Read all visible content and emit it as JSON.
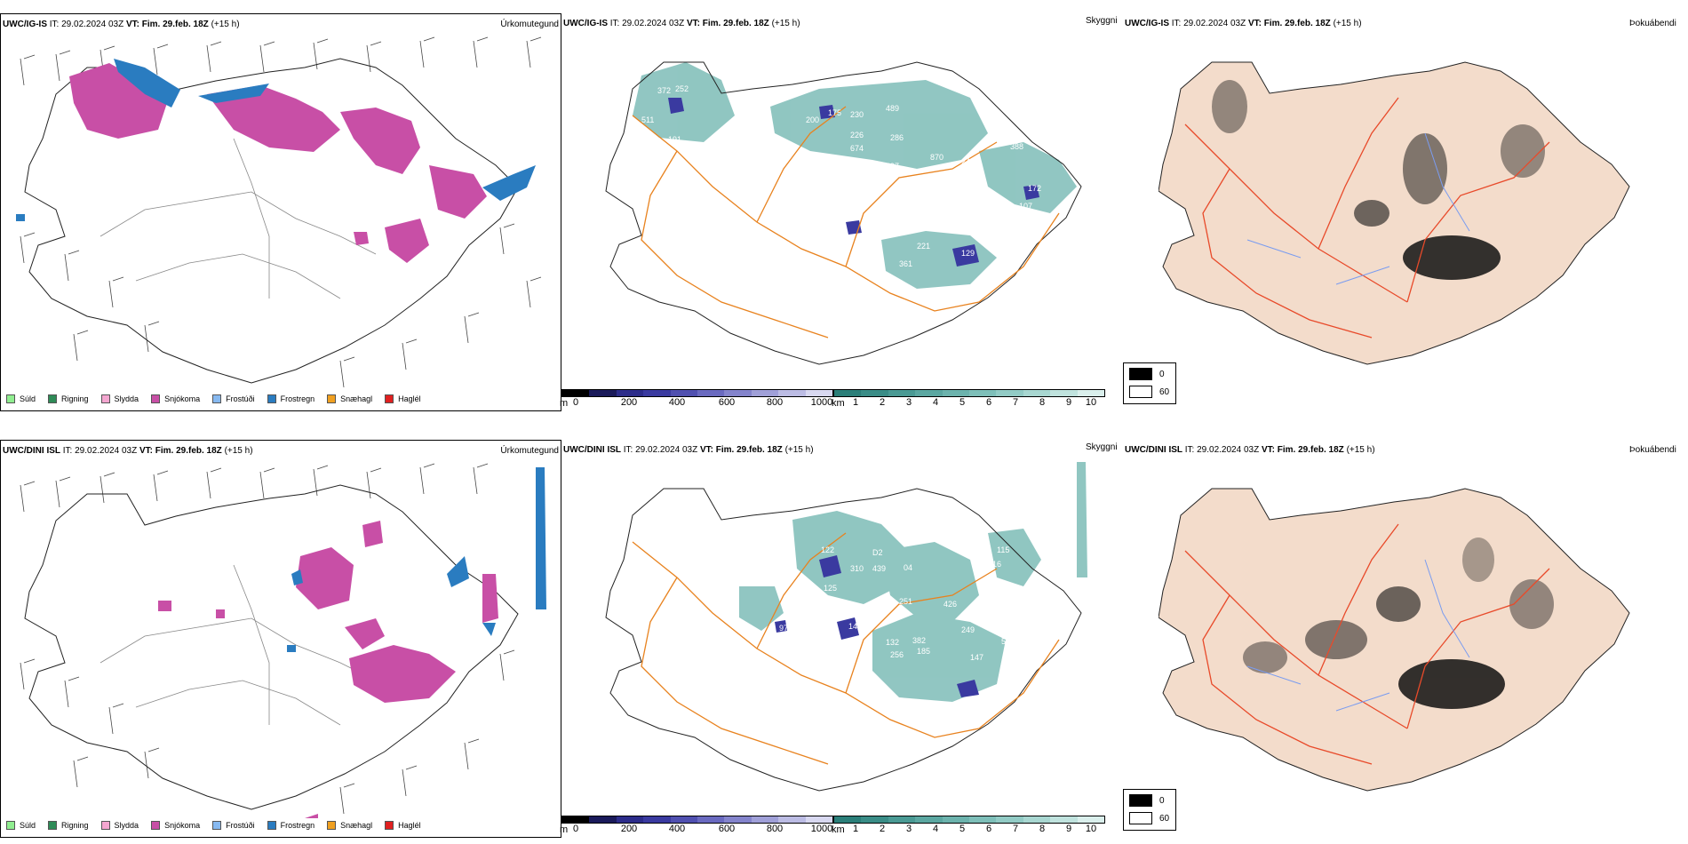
{
  "colors": {
    "sudd": "#90ee90",
    "rigning": "#2e8b57",
    "slydda": "#f4a6d0",
    "snjokoma": "#c84fa6",
    "frostudi": "#87b9f0",
    "frostregn": "#2a7cc0",
    "snaehagl": "#f0a020",
    "haglel": "#e02020",
    "snow_magenta": "#c84fa6",
    "snow_blue": "#2a7cc0",
    "roads": "#e8821e",
    "cloud_teal": "#4aa39c",
    "fog_land": "#f3dccb",
    "fog_road": "#e84a2a",
    "fog_river": "#7a9cf0"
  },
  "icons": [
    "wind-barb-icon",
    "fog-shade-icon"
  ],
  "rows": [
    {
      "model": "UWC/IG-IS",
      "it_label": "IT:",
      "it_value": "29.02.2024 03Z",
      "vt_label": "VT:",
      "vt_value": "Fim. 29.feb. 18Z",
      "lead": "(+15 h)",
      "precip_title": "Úrkomutegund",
      "cloud_title": "Skyggni",
      "fog_title": "Þokuábendi",
      "cloud_labels": [
        "372",
        "252",
        "511",
        "191",
        "629",
        "200",
        "175",
        "230",
        "489",
        "226",
        "286",
        "674",
        "897",
        "870",
        "245",
        "388",
        "172",
        "107",
        "221",
        "361",
        "129"
      ]
    },
    {
      "model": "UWC/DINI ISL",
      "it_label": "IT:",
      "it_value": "29.02.2024 03Z",
      "vt_label": "VT:",
      "vt_value": "Fim. 29.feb. 18Z",
      "lead": "(+15 h)",
      "precip_title": "Úrkomutegund",
      "cloud_title": "Skyggni",
      "fog_title": "Þokuábendi",
      "cloud_labels": [
        "122",
        "D2",
        "310",
        "439",
        "04",
        "125",
        "251",
        "426",
        "115",
        "216",
        "97",
        "147",
        "132",
        "382",
        "249",
        "51",
        "256",
        "185",
        "147"
      ]
    }
  ],
  "precip_legend": [
    "Súld",
    "Rigning",
    "Slydda",
    "Snjókoma",
    "Frostúði",
    "Frostregn",
    "Snæhagl",
    "Haglél"
  ],
  "cloud_base": {
    "unit": "m",
    "ticks": [
      "0",
      "200",
      "400",
      "600",
      "800",
      "1000"
    ],
    "colors": [
      "#000000",
      "#1a1a5a",
      "#2c2c8a",
      "#3a3aa0",
      "#5050b0",
      "#6a6ac0",
      "#8484cc",
      "#a0a0d8",
      "#bcbce4",
      "#d8d8f0"
    ]
  },
  "visibility": {
    "unit": "km",
    "ticks": [
      "1",
      "2",
      "3",
      "4",
      "5",
      "6",
      "7",
      "8",
      "9",
      "10"
    ],
    "colors": [
      "#2b7f79",
      "#3a8d87",
      "#4a9a94",
      "#5ba7a1",
      "#6cb3ad",
      "#7ebfb9",
      "#92cbc5",
      "#a8d7d1",
      "#c0e3de",
      "#daefec"
    ]
  },
  "fog_legend": [
    "0",
    "60"
  ]
}
